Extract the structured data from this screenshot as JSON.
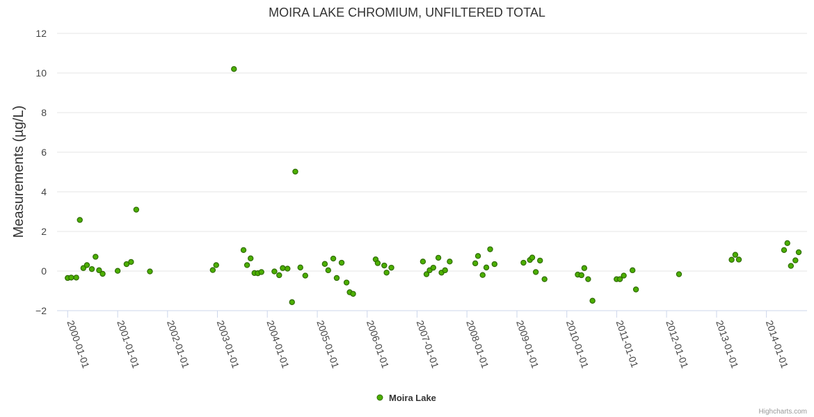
{
  "chart_data": {
    "type": "scatter",
    "title": "MOIRA LAKE CHROMIUM, UNFILTERED TOTAL",
    "xlabel": "",
    "ylabel": "Measurements (µg/L)",
    "ylim": [
      -2,
      12
    ],
    "yticks": [
      -2,
      0,
      2,
      4,
      6,
      8,
      10,
      12
    ],
    "xlim": [
      "1999-11-20",
      "2014-08-25"
    ],
    "xticks": [
      "2000-01-01",
      "2001-01-01",
      "2002-01-01",
      "2003-01-01",
      "2004-01-01",
      "2005-01-01",
      "2006-01-01",
      "2007-01-01",
      "2008-01-01",
      "2009-01-01",
      "2010-01-01",
      "2011-01-01",
      "2012-01-01",
      "2013-01-01",
      "2014-01-01"
    ],
    "grid": true,
    "legend_position": "bottom-center",
    "series": [
      {
        "name": "Moira Lake",
        "color": "#4caf00",
        "border_color": "#2e6b00",
        "points": [
          [
            "2000-01-01",
            -0.35
          ],
          [
            "2000-01-27",
            -0.33
          ],
          [
            "2000-03-04",
            -0.33
          ],
          [
            "2000-03-30",
            2.58
          ],
          [
            "2000-04-25",
            0.15
          ],
          [
            "2000-05-21",
            0.3
          ],
          [
            "2000-06-26",
            0.1
          ],
          [
            "2000-07-23",
            0.72
          ],
          [
            "2000-08-18",
            0.04
          ],
          [
            "2000-09-13",
            -0.14
          ],
          [
            "2001-01-01",
            0.01
          ],
          [
            "2001-03-07",
            0.35
          ],
          [
            "2001-04-09",
            0.46
          ],
          [
            "2001-05-17",
            3.1
          ],
          [
            "2001-08-25",
            -0.02
          ],
          [
            "2002-11-28",
            0.05
          ],
          [
            "2002-12-23",
            0.3
          ],
          [
            "2003-05-02",
            10.2
          ],
          [
            "2003-07-11",
            1.06
          ],
          [
            "2003-08-06",
            0.3
          ],
          [
            "2003-09-01",
            0.64
          ],
          [
            "2003-09-29",
            -0.1
          ],
          [
            "2003-10-24",
            -0.11
          ],
          [
            "2003-11-19",
            -0.05
          ],
          [
            "2004-02-22",
            -0.02
          ],
          [
            "2004-03-28",
            -0.21
          ],
          [
            "2004-04-23",
            0.15
          ],
          [
            "2004-05-28",
            0.12
          ],
          [
            "2004-06-30",
            -1.57
          ],
          [
            "2004-07-24",
            5.02
          ],
          [
            "2004-08-30",
            0.18
          ],
          [
            "2004-10-05",
            -0.23
          ],
          [
            "2005-02-25",
            0.36
          ],
          [
            "2005-03-22",
            0.04
          ],
          [
            "2005-04-28",
            0.63
          ],
          [
            "2005-05-23",
            -0.35
          ],
          [
            "2005-06-28",
            0.42
          ],
          [
            "2005-08-03",
            -0.58
          ],
          [
            "2005-08-26",
            -1.07
          ],
          [
            "2005-09-20",
            -1.15
          ],
          [
            "2006-03-04",
            0.59
          ],
          [
            "2006-03-19",
            0.4
          ],
          [
            "2006-05-06",
            0.28
          ],
          [
            "2006-05-23",
            -0.08
          ],
          [
            "2006-06-27",
            0.17
          ],
          [
            "2007-02-13",
            0.48
          ],
          [
            "2007-03-11",
            -0.16
          ],
          [
            "2007-04-03",
            0.04
          ],
          [
            "2007-04-30",
            0.17
          ],
          [
            "2007-06-06",
            0.67
          ],
          [
            "2007-06-29",
            -0.08
          ],
          [
            "2007-07-25",
            0.04
          ],
          [
            "2007-08-28",
            0.48
          ],
          [
            "2008-03-02",
            0.39
          ],
          [
            "2008-03-22",
            0.76
          ],
          [
            "2008-04-25",
            -0.2
          ],
          [
            "2008-05-22",
            0.18
          ],
          [
            "2008-06-19",
            1.1
          ],
          [
            "2008-07-21",
            0.35
          ],
          [
            "2009-02-18",
            0.42
          ],
          [
            "2009-04-06",
            0.56
          ],
          [
            "2009-04-23",
            0.68
          ],
          [
            "2009-05-19",
            -0.05
          ],
          [
            "2009-06-19",
            0.53
          ],
          [
            "2009-07-22",
            -0.41
          ],
          [
            "2010-03-22",
            -0.18
          ],
          [
            "2010-04-18",
            -0.21
          ],
          [
            "2010-05-09",
            0.15
          ],
          [
            "2010-06-06",
            -0.41
          ],
          [
            "2010-07-08",
            -1.5
          ],
          [
            "2010-12-31",
            -0.41
          ],
          [
            "2011-01-25",
            -0.41
          ],
          [
            "2011-02-22",
            -0.23
          ],
          [
            "2011-04-27",
            0.04
          ],
          [
            "2011-05-22",
            -0.93
          ],
          [
            "2012-04-01",
            -0.16
          ],
          [
            "2013-04-21",
            0.57
          ],
          [
            "2013-05-18",
            0.82
          ],
          [
            "2013-06-13",
            0.58
          ],
          [
            "2014-05-10",
            1.06
          ],
          [
            "2014-06-03",
            1.41
          ],
          [
            "2014-06-29",
            0.26
          ],
          [
            "2014-08-01",
            0.54
          ],
          [
            "2014-08-25",
            0.95
          ]
        ]
      }
    ]
  },
  "credits": "Highcharts.com"
}
